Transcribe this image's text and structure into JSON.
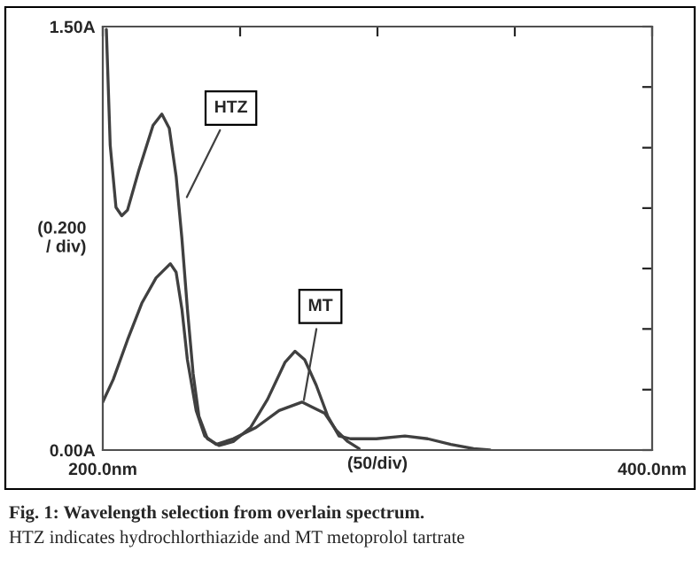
{
  "chart_data": {
    "type": "line",
    "xlabel": "(50/div)",
    "ylabel": "(0.200\n/ div)",
    "xlim": [
      200,
      400
    ],
    "ylim": [
      0,
      1.5
    ],
    "xticks": [
      {
        "value": 200,
        "label": "200.0nm"
      },
      {
        "value": 250,
        "label": null
      },
      {
        "value": 300,
        "label": null
      },
      {
        "value": 350,
        "label": null
      },
      {
        "value": 400,
        "label": "400.0nm"
      }
    ],
    "yticks": [
      {
        "value": 0,
        "label": "0.00A"
      },
      {
        "value": 0.214,
        "label": null
      },
      {
        "value": 0.429,
        "label": null
      },
      {
        "value": 0.643,
        "label": null
      },
      {
        "value": 0.857,
        "label": null
      },
      {
        "value": 1.071,
        "label": null
      },
      {
        "value": 1.286,
        "label": null
      },
      {
        "value": 1.5,
        "label": "1.50A"
      }
    ],
    "grid": false,
    "legend": false,
    "series": [
      {
        "color": "#404040",
        "x": [
          201.3,
          202.7,
          204.8,
          206.9,
          209,
          213.1,
          218.3,
          221.5,
          224.2,
          226.7,
          228.8,
          230.8,
          232.9,
          235,
          238.1,
          242.3,
          247.5,
          253.8,
          260,
          266.3,
          270,
          273.5,
          277.7,
          281.9,
          286,
          290.2,
          299.6,
          310,
          318.3,
          326.7,
          335,
          341
        ],
        "values": [
          1.49,
          1.08,
          0.86,
          0.83,
          0.85,
          0.99,
          1.15,
          1.19,
          1.14,
          0.97,
          0.75,
          0.5,
          0.27,
          0.12,
          0.04,
          0.016,
          0.03,
          0.08,
          0.18,
          0.31,
          0.35,
          0.32,
          0.23,
          0.12,
          0.05,
          0.04,
          0.04,
          0.05,
          0.04,
          0.02,
          0.005,
          0
        ]
      },
      {
        "color": "#404040",
        "x": [
          200,
          203.8,
          209,
          214.2,
          219.4,
          224.6,
          226.7,
          228.8,
          230.8,
          234,
          237.1,
          241.3,
          247.5,
          255.8,
          264.2,
          272.5,
          276.7,
          280.8,
          285,
          289.2,
          293.3
        ],
        "values": [
          0.17,
          0.25,
          0.39,
          0.52,
          0.61,
          0.66,
          0.63,
          0.5,
          0.32,
          0.14,
          0.05,
          0.02,
          0.04,
          0.08,
          0.14,
          0.17,
          0.15,
          0.13,
          0.07,
          0.03,
          0.005
        ]
      }
    ],
    "annotations": [
      {
        "text": "HTZ",
        "x": 229.8,
        "y": 0.88
      },
      {
        "text": "MT",
        "x": 272.9,
        "y": 0.16
      },
      "Fig. 1: Wavelength selection from overlain spectrum.",
      "HTZ indicates hydrochlorthiazide and MT metoprolol tartrate"
    ]
  }
}
